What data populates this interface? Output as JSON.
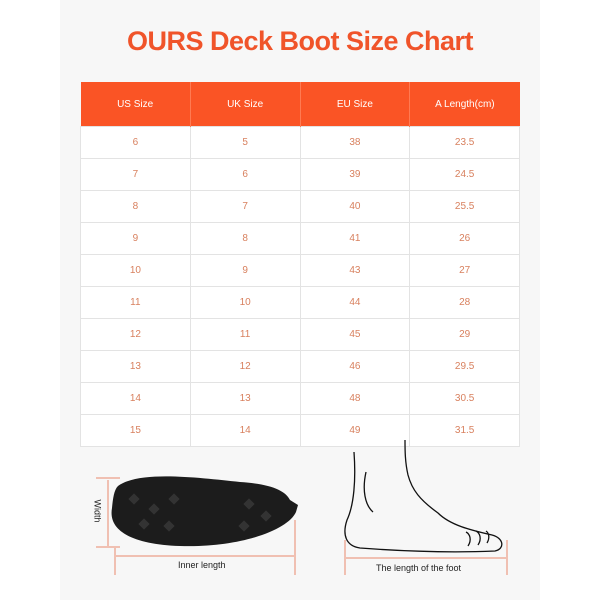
{
  "title": "OURS Deck Boot Size Chart",
  "colors": {
    "accent": "#fa5425",
    "cell_text": "#d8805e"
  },
  "table": {
    "headers": [
      "US Size",
      "UK Size",
      "EU Size",
      "A Length(cm)"
    ],
    "rows": [
      [
        "6",
        "5",
        "38",
        "23.5"
      ],
      [
        "7",
        "6",
        "39",
        "24.5"
      ],
      [
        "8",
        "7",
        "40",
        "25.5"
      ],
      [
        "9",
        "8",
        "41",
        "26"
      ],
      [
        "10",
        "9",
        "43",
        "27"
      ],
      [
        "11",
        "10",
        "44",
        "28"
      ],
      [
        "12",
        "11",
        "45",
        "29"
      ],
      [
        "13",
        "12",
        "46",
        "29.5"
      ],
      [
        "14",
        "13",
        "48",
        "30.5"
      ],
      [
        "15",
        "14",
        "49",
        "31.5"
      ]
    ]
  },
  "diagram": {
    "width_label": "Width",
    "inner_length_label": "Inner length",
    "foot_length_label": "The length of the foot"
  }
}
